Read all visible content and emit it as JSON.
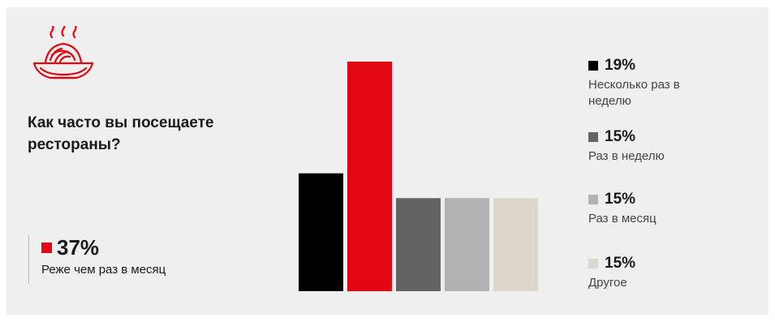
{
  "title": "Как часто вы посещаете рестораны?",
  "icon": "spaghetti-plate-icon",
  "colors": {
    "accent_red": "#e30613",
    "background": "#efefef"
  },
  "chart_data": {
    "type": "bar",
    "title": "Как часто вы посещаете рестораны?",
    "categories": [
      "Несколько раз в неделю",
      "Реже чем раз в месяц",
      "Раз в неделю",
      "Раз в месяц",
      "Другое"
    ],
    "values": [
      19,
      37,
      15,
      15,
      15
    ],
    "value_labels": [
      "19%",
      "37%",
      "15%",
      "15%",
      "15%"
    ],
    "colors": [
      "#000000",
      "#e30613",
      "#636365",
      "#b1b2b4",
      "#ddd6ca"
    ],
    "ylim": [
      0,
      37
    ],
    "grid": false,
    "legend_placement": "right"
  },
  "highlight": {
    "percent": "37%",
    "label": "Реже чем раз в месяц",
    "color": "#e30613"
  },
  "legend": [
    {
      "percent": "19%",
      "label": "Несколько раз в неделю",
      "color": "#000000"
    },
    {
      "percent": "15%",
      "label": "Раз в неделю",
      "color": "#636365"
    },
    {
      "percent": "15%",
      "label": "Раз в месяц",
      "color": "#b1b2b4"
    },
    {
      "percent": "15%",
      "label": "Другое",
      "color": "#ddd6ca"
    }
  ]
}
